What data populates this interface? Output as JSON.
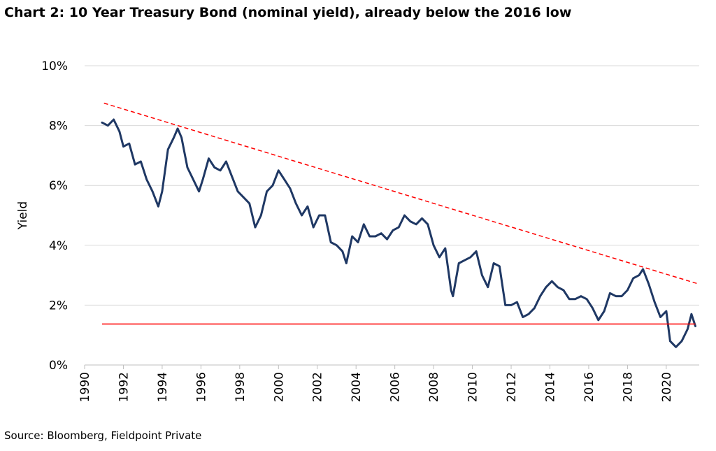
{
  "chart_data": {
    "type": "line",
    "title": "Chart 2: 10 Year Treasury Bond (nominal yield), already below the 2016 low",
    "ylabel": "Yield",
    "xlabel": "",
    "xlim": [
      1990,
      2021.7
    ],
    "ylim": [
      0,
      10
    ],
    "x_ticks": [
      "1990",
      "1992",
      "1994",
      "1996",
      "1998",
      "2000",
      "2002",
      "2004",
      "2006",
      "2008",
      "2010",
      "2012",
      "2014",
      "2016",
      "2018",
      "2020"
    ],
    "y_ticks": [
      "0%",
      "2%",
      "4%",
      "6%",
      "8%",
      "10%"
    ],
    "grid": "horizontal",
    "legend": "none",
    "series": [
      {
        "color": "#1f3864",
        "x": [
          1990.9,
          1991.2,
          1991.5,
          1991.8,
          1992.0,
          1992.3,
          1992.6,
          1992.9,
          1993.2,
          1993.5,
          1993.8,
          1994.0,
          1994.3,
          1994.6,
          1994.8,
          1995.0,
          1995.3,
          1995.6,
          1995.9,
          1996.1,
          1996.4,
          1996.7,
          1997.0,
          1997.3,
          1997.6,
          1997.9,
          1998.2,
          1998.5,
          1998.8,
          1999.1,
          1999.4,
          1999.7,
          2000.0,
          2000.3,
          2000.6,
          2000.9,
          2001.2,
          2001.5,
          2001.8,
          2002.1,
          2002.4,
          2002.7,
          2003.0,
          2003.3,
          2003.5,
          2003.8,
          2004.1,
          2004.4,
          2004.7,
          2005.0,
          2005.3,
          2005.6,
          2005.9,
          2006.2,
          2006.5,
          2006.8,
          2007.1,
          2007.4,
          2007.7,
          2008.0,
          2008.3,
          2008.6,
          2008.9,
          2009.0,
          2009.3,
          2009.6,
          2009.9,
          2010.2,
          2010.5,
          2010.8,
          2011.1,
          2011.4,
          2011.7,
          2012.0,
          2012.3,
          2012.6,
          2012.9,
          2013.2,
          2013.5,
          2013.8,
          2014.1,
          2014.4,
          2014.7,
          2015.0,
          2015.3,
          2015.6,
          2015.9,
          2016.2,
          2016.5,
          2016.8,
          2017.1,
          2017.4,
          2017.7,
          2018.0,
          2018.3,
          2018.6,
          2018.8,
          2019.1,
          2019.4,
          2019.7,
          2020.0,
          2020.2,
          2020.5,
          2020.8,
          2021.1,
          2021.3,
          2021.5
        ],
        "y": [
          8.1,
          8.0,
          8.2,
          7.8,
          7.3,
          7.4,
          6.7,
          6.8,
          6.2,
          5.8,
          5.3,
          5.8,
          7.2,
          7.6,
          7.9,
          7.6,
          6.6,
          6.2,
          5.8,
          6.2,
          6.9,
          6.6,
          6.5,
          6.8,
          6.3,
          5.8,
          5.6,
          5.4,
          4.6,
          5.0,
          5.8,
          6.0,
          6.5,
          6.2,
          5.9,
          5.4,
          5.0,
          5.3,
          4.6,
          5.0,
          5.0,
          4.1,
          4.0,
          3.8,
          3.4,
          4.3,
          4.1,
          4.7,
          4.3,
          4.3,
          4.4,
          4.2,
          4.5,
          4.6,
          5.0,
          4.8,
          4.7,
          4.9,
          4.7,
          4.0,
          3.6,
          3.9,
          2.5,
          2.3,
          3.4,
          3.5,
          3.6,
          3.8,
          3.0,
          2.6,
          3.4,
          3.3,
          2.0,
          2.0,
          2.1,
          1.6,
          1.7,
          1.9,
          2.3,
          2.6,
          2.8,
          2.6,
          2.5,
          2.2,
          2.2,
          2.3,
          2.2,
          1.9,
          1.5,
          1.8,
          2.4,
          2.3,
          2.3,
          2.5,
          2.9,
          3.0,
          3.2,
          2.7,
          2.1,
          1.6,
          1.8,
          0.8,
          0.6,
          0.8,
          1.2,
          1.7,
          1.3
        ]
      }
    ],
    "annotations": [
      {
        "type": "dashed-trendline",
        "color": "#ff0000",
        "x": [
          1991.0,
          2021.7
        ],
        "y": [
          8.75,
          2.7
        ]
      },
      {
        "type": "horizontal-line",
        "color": "#ff0000",
        "x": [
          1990.9,
          2021.5
        ],
        "y": 1.37
      }
    ]
  },
  "source": "Source: Bloomberg, Fieldpoint Private"
}
